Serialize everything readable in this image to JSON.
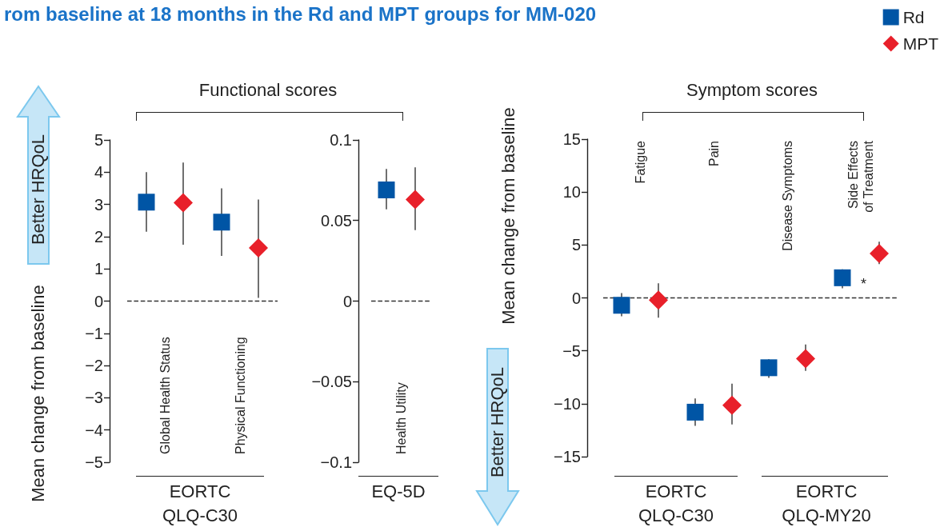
{
  "chart_data": [
    {
      "type": "scatter",
      "title": "rom baseline at 18 months in the Rd and MPT groups for MM-020",
      "ylabel": "Mean change from baseline",
      "categories": [
        "Global Health Status",
        "Physical Functioning"
      ],
      "series": [
        {
          "color": "#0055a5",
          "marker": "square",
          "values": [
            3.07,
            2.45
          ],
          "errors": [
            [
              2.15,
              4.0
            ],
            [
              1.4,
              3.5
            ]
          ]
        },
        {
          "color": "#e8202a",
          "marker": "diamond",
          "values": [
            3.05,
            1.65
          ],
          "errors": [
            [
              1.75,
              4.3
            ],
            [
              0.1,
              3.15
            ]
          ]
        }
      ],
      "ylim": [
        -5,
        5
      ],
      "yticks": [
        {
          "value": -5,
          "label": "−5"
        },
        {
          "value": -4,
          "label": "−4"
        },
        {
          "value": -3,
          "label": "−3"
        },
        {
          "value": -2,
          "label": "−2"
        },
        {
          "value": -1,
          "label": "−1"
        },
        0,
        1,
        2,
        3,
        4,
        5
      ],
      "ref_lines": [
        {
          "axis": "y",
          "value": 0,
          "line_style": "dashed"
        }
      ],
      "annotations": [
        "Functional scores",
        "EORTC\nQLQ-C30",
        "Better HRQoL"
      ]
    },
    {
      "type": "scatter",
      "categories": [
        "Health Utility"
      ],
      "series": [
        {
          "color": "#0055a5",
          "marker": "square",
          "values": [
            0.069
          ],
          "errors": [
            [
              0.057,
              0.082
            ]
          ]
        },
        {
          "color": "#e8202a",
          "marker": "diamond",
          "values": [
            0.063
          ],
          "errors": [
            [
              0.044,
              0.083
            ]
          ]
        }
      ],
      "ylim": [
        -0.1,
        0.1
      ],
      "yticks": [
        {
          "value": -0.1,
          "label": "−0.1"
        },
        {
          "value": -0.05,
          "label": "−0.05"
        },
        0,
        0.05,
        0.1
      ],
      "ref_lines": [
        {
          "axis": "y",
          "value": 0,
          "line_style": "dashed"
        }
      ],
      "annotations": [
        "EQ-5D"
      ]
    },
    {
      "type": "scatter",
      "ylabel": "Mean change from baseline",
      "categories": [
        "Fatigue",
        "Pain",
        "Disease Symptoms",
        "Side Effects\nof Treatment"
      ],
      "series": [
        {
          "name": "Rd",
          "color": "#0055a5",
          "marker": "square",
          "values": [
            -0.7,
            -10.8,
            -6.6,
            1.9
          ],
          "errors": [
            [
              -1.73,
              0.46
            ],
            [
              -12.1,
              -9.5
            ],
            [
              -7.55,
              -5.8
            ],
            [
              0.9,
              2.7
            ]
          ]
        },
        {
          "name": "MPT",
          "color": "#e8202a",
          "marker": "diamond",
          "values": [
            -0.2,
            -10.15,
            -5.75,
            4.2
          ],
          "errors": [
            [
              -1.87,
              1.38
            ],
            [
              -11.95,
              -8.1
            ],
            [
              -6.9,
              -4.4
            ],
            [
              3.2,
              5.3
            ]
          ]
        }
      ],
      "ylim": [
        -15,
        15
      ],
      "yticks": [
        {
          "value": -15,
          "label": "−15"
        },
        {
          "value": -10,
          "label": "−10"
        },
        {
          "value": -5,
          "label": "−5"
        },
        0,
        5,
        10,
        15
      ],
      "ref_lines": [
        {
          "axis": "y",
          "value": 0,
          "line_style": "dashed"
        }
      ],
      "legend": "top right",
      "annotations": [
        "Symptom scores",
        "EORTC\nQLQ-C30",
        "EORTC\nQLQ-MY20",
        "Better HRQoL",
        "*"
      ]
    }
  ]
}
